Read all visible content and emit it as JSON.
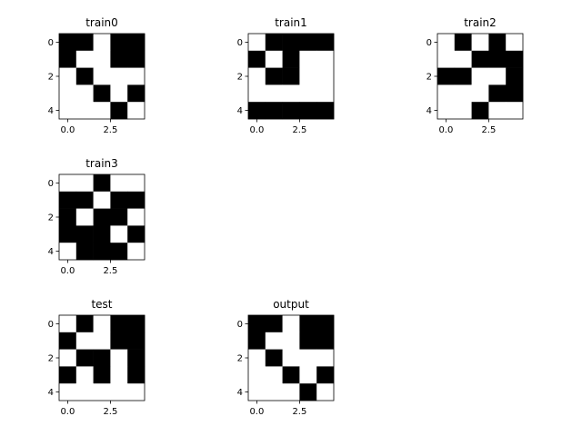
{
  "chart_data": [
    {
      "type": "heatmap",
      "title": "train0",
      "grid": [
        [
          1,
          1,
          0,
          1,
          1
        ],
        [
          1,
          0,
          0,
          1,
          1
        ],
        [
          0,
          1,
          0,
          0,
          0
        ],
        [
          0,
          0,
          1,
          0,
          1
        ],
        [
          0,
          0,
          0,
          1,
          0
        ]
      ],
      "x_ticks": [
        "0.0",
        "2.5"
      ],
      "y_ticks": [
        "0",
        "2",
        "4"
      ]
    },
    {
      "type": "heatmap",
      "title": "train1",
      "grid": [
        [
          0,
          1,
          1,
          1,
          1
        ],
        [
          1,
          0,
          1,
          0,
          0
        ],
        [
          0,
          1,
          1,
          0,
          0
        ],
        [
          0,
          0,
          0,
          0,
          0
        ],
        [
          1,
          1,
          1,
          1,
          1
        ]
      ],
      "x_ticks": [
        "0.0",
        "2.5"
      ],
      "y_ticks": [
        "0",
        "2",
        "4"
      ]
    },
    {
      "type": "heatmap",
      "title": "train2",
      "grid": [
        [
          0,
          1,
          0,
          1,
          0
        ],
        [
          0,
          0,
          1,
          1,
          1
        ],
        [
          1,
          1,
          0,
          0,
          1
        ],
        [
          0,
          0,
          0,
          1,
          1
        ],
        [
          0,
          0,
          1,
          0,
          0
        ]
      ],
      "x_ticks": [
        "0.0",
        "2.5"
      ],
      "y_ticks": [
        "0",
        "2",
        "4"
      ]
    },
    {
      "type": "heatmap",
      "title": "train3",
      "grid": [
        [
          0,
          0,
          1,
          0,
          0
        ],
        [
          1,
          1,
          0,
          1,
          1
        ],
        [
          1,
          0,
          1,
          1,
          0
        ],
        [
          1,
          1,
          1,
          0,
          1
        ],
        [
          0,
          1,
          1,
          1,
          0
        ]
      ],
      "x_ticks": [
        "0.0",
        "2.5"
      ],
      "y_ticks": [
        "0",
        "2",
        "4"
      ]
    },
    {
      "type": "heatmap",
      "title": "test",
      "grid": [
        [
          0,
          1,
          0,
          1,
          1
        ],
        [
          1,
          0,
          0,
          1,
          1
        ],
        [
          0,
          1,
          1,
          0,
          1
        ],
        [
          1,
          0,
          1,
          0,
          1
        ],
        [
          0,
          0,
          0,
          0,
          0
        ]
      ],
      "x_ticks": [
        "0.0",
        "2.5"
      ],
      "y_ticks": [
        "0",
        "2",
        "4"
      ]
    },
    {
      "type": "heatmap",
      "title": "output",
      "grid": [
        [
          1,
          1,
          0,
          1,
          1
        ],
        [
          1,
          0,
          0,
          1,
          1
        ],
        [
          0,
          1,
          0,
          0,
          0
        ],
        [
          0,
          0,
          1,
          0,
          1
        ],
        [
          0,
          0,
          0,
          1,
          0
        ]
      ],
      "x_ticks": [
        "0.0",
        "2.5"
      ],
      "y_ticks": [
        "0",
        "2",
        "4"
      ]
    }
  ],
  "colors": {
    "filled": "#000000",
    "empty": "#ffffff",
    "frame": "#000000"
  }
}
